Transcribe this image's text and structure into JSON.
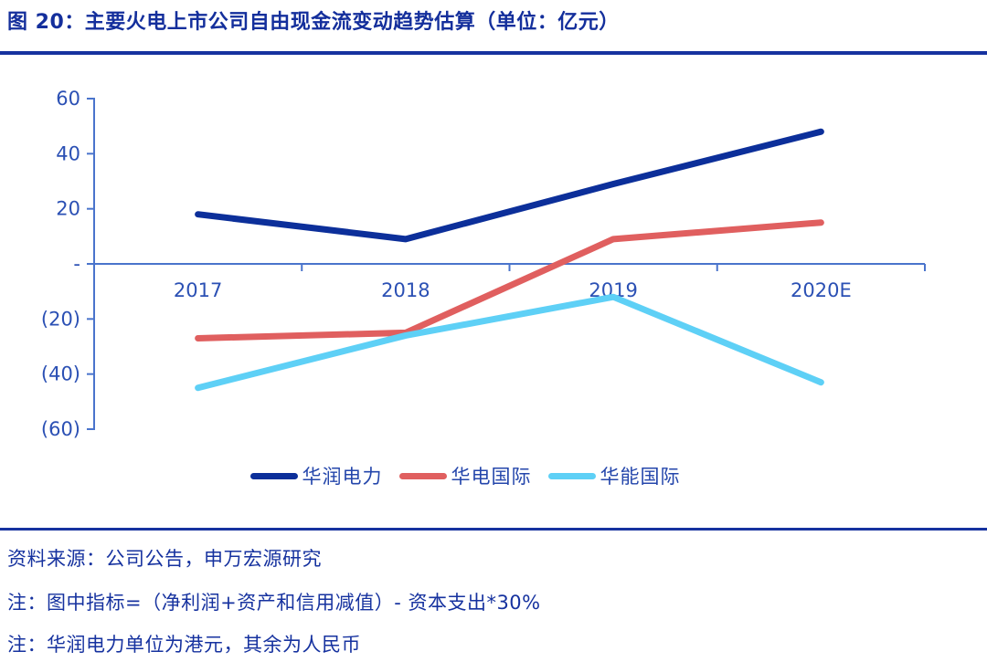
{
  "page": {
    "title": "图 20：主要火电上市公司自由现金流变动趋势估算（单位：亿元）"
  },
  "chart_data": {
    "type": "line",
    "title": "主要火电上市公司自由现金流变动趋势估算",
    "unit": "亿元",
    "categories": [
      "2017",
      "2018",
      "2019",
      "2020E"
    ],
    "series": [
      {
        "name": "华润电力",
        "color": "#0c2f9a",
        "values": [
          18,
          9,
          29,
          48
        ]
      },
      {
        "name": "华电国际",
        "color": "#e05f5f",
        "values": [
          -27,
          -25,
          9,
          15
        ]
      },
      {
        "name": "华能国际",
        "color": "#5ed0f6",
        "values": [
          -45,
          -26,
          -12,
          -43
        ]
      }
    ],
    "ylim": [
      -60,
      60
    ],
    "yticks": [
      60,
      40,
      20,
      0,
      -20,
      -40,
      -60
    ],
    "ytick_labels": [
      "60",
      "40",
      "20",
      "-",
      "(20)",
      "(40)",
      "(60)"
    ],
    "xlabel": "",
    "ylabel": "",
    "grid": false,
    "legend_position": "bottom"
  },
  "footer": {
    "source": "资料来源：公司公告，申万宏源研究",
    "note1": "注：图中指标=（净利润+资产和信用减值）- 资本支出*30%",
    "note2": "注：华润电力单位为港元，其余为人民币"
  },
  "colors": {
    "title_text": "#142f9c",
    "rule": "#16329f",
    "axis_line": "#4a74cc",
    "axis_label": "#2b50b4",
    "series_navy": "#0c2f9a",
    "series_red": "#e05f5f",
    "series_cyan": "#5ed0f6",
    "footer_text": "#16329f"
  }
}
